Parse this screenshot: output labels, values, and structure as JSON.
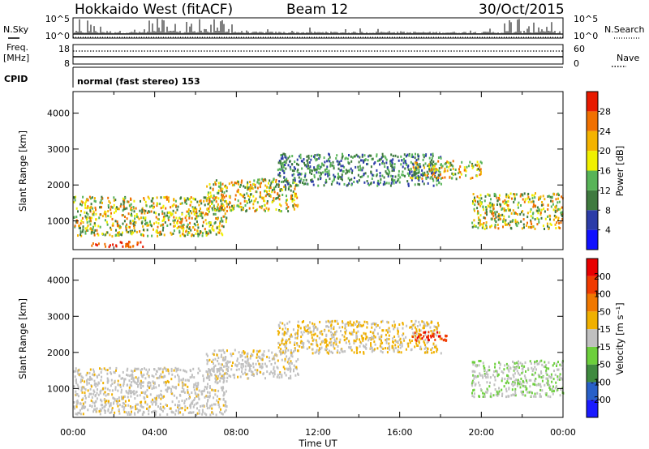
{
  "header": {
    "station": "Hokkaido West (fitACF)",
    "beam": "Beam 12",
    "date": "30/Oct/2015"
  },
  "status_panel": {
    "left_labels": {
      "nsky": "N.Sky",
      "freq_line1": "Freq.",
      "freq_line2": "[MHz]",
      "cpid": "CPID"
    },
    "right_labels": {
      "nsearch": "N.Search",
      "nave": "Nave"
    },
    "left_ticks": {
      "sky_top": "10^5",
      "sky_bottom": "10^0",
      "freq_top": "18",
      "freq_bottom": "8"
    },
    "right_ticks": {
      "search_top": "10^5",
      "search_bottom": "10^0",
      "nave_top": "60",
      "nave_bottom": "0"
    },
    "cpid_text": "normal (fast stereo) 153"
  },
  "chart_data": [
    {
      "type": "heatmap",
      "title": "",
      "xlabel": "",
      "ylabel": "Slant Range [km]",
      "ylim": [
        200,
        4600
      ],
      "yticks": [
        "1000",
        "2000",
        "3000",
        "4000"
      ],
      "xticks": [
        "00:00",
        "04:00",
        "08:00",
        "12:00",
        "16:00",
        "20:00",
        "00:00"
      ],
      "colorbar": {
        "label": "Power [dB]",
        "ticks": [
          "4",
          "8",
          "12",
          "16",
          "20",
          "24",
          "28"
        ],
        "colors": [
          "#1010ff",
          "#2c3ca8",
          "#3f7a3f",
          "#58b458",
          "#f0f000",
          "#f4b300",
          "#f07000",
          "#e81a00"
        ]
      },
      "bands": [
        {
          "t_start": 0,
          "t_end": 7.5,
          "r_low": 600,
          "r_high": 1700,
          "level": "mid"
        },
        {
          "t_start": 0.8,
          "t_end": 3.5,
          "r_low": 300,
          "r_high": 450,
          "level": "high"
        },
        {
          "t_start": 6.5,
          "t_end": 11,
          "r_low": 1300,
          "r_high": 2200,
          "level": "mid"
        },
        {
          "t_start": 10,
          "t_end": 18,
          "r_low": 2000,
          "r_high": 2900,
          "level": "low"
        },
        {
          "t_start": 16.5,
          "t_end": 20,
          "r_low": 2200,
          "r_high": 2700,
          "level": "mid"
        },
        {
          "t_start": 19.5,
          "t_end": 24,
          "r_low": 800,
          "r_high": 1800,
          "level": "mid"
        }
      ]
    },
    {
      "type": "heatmap",
      "title": "",
      "xlabel": "Time UT",
      "ylabel": "Slant Range [km]",
      "ylim": [
        200,
        4600
      ],
      "yticks": [
        "1000",
        "2000",
        "3000",
        "4000"
      ],
      "xticks": [
        "00:00",
        "04:00",
        "08:00",
        "12:00",
        "16:00",
        "20:00",
        "00:00"
      ],
      "colorbar": {
        "label": "Velocity [m s⁻¹]",
        "ticks": [
          "200",
          "100",
          "50",
          "15",
          "-15",
          "-50",
          "-100",
          "-200"
        ],
        "colors": [
          "#1a1aff",
          "#2860c8",
          "#3f8a3f",
          "#6ccf3c",
          "#c0c0c0",
          "#f0b000",
          "#f07800",
          "#f03a00",
          "#e80000"
        ]
      },
      "bands": [
        {
          "t_start": 0,
          "t_end": 7.5,
          "r_low": 300,
          "r_high": 1600,
          "level": "ground"
        },
        {
          "t_start": 6.5,
          "t_end": 11,
          "r_low": 1300,
          "r_high": 2100,
          "level": "ground"
        },
        {
          "t_start": 10,
          "t_end": 18,
          "r_low": 2000,
          "r_high": 2900,
          "level": "neg"
        },
        {
          "t_start": 16.5,
          "t_end": 18.3,
          "r_low": 2350,
          "r_high": 2600,
          "level": "strongneg"
        },
        {
          "t_start": 19.5,
          "t_end": 24,
          "r_low": 800,
          "r_high": 1800,
          "level": "pos"
        }
      ]
    }
  ]
}
